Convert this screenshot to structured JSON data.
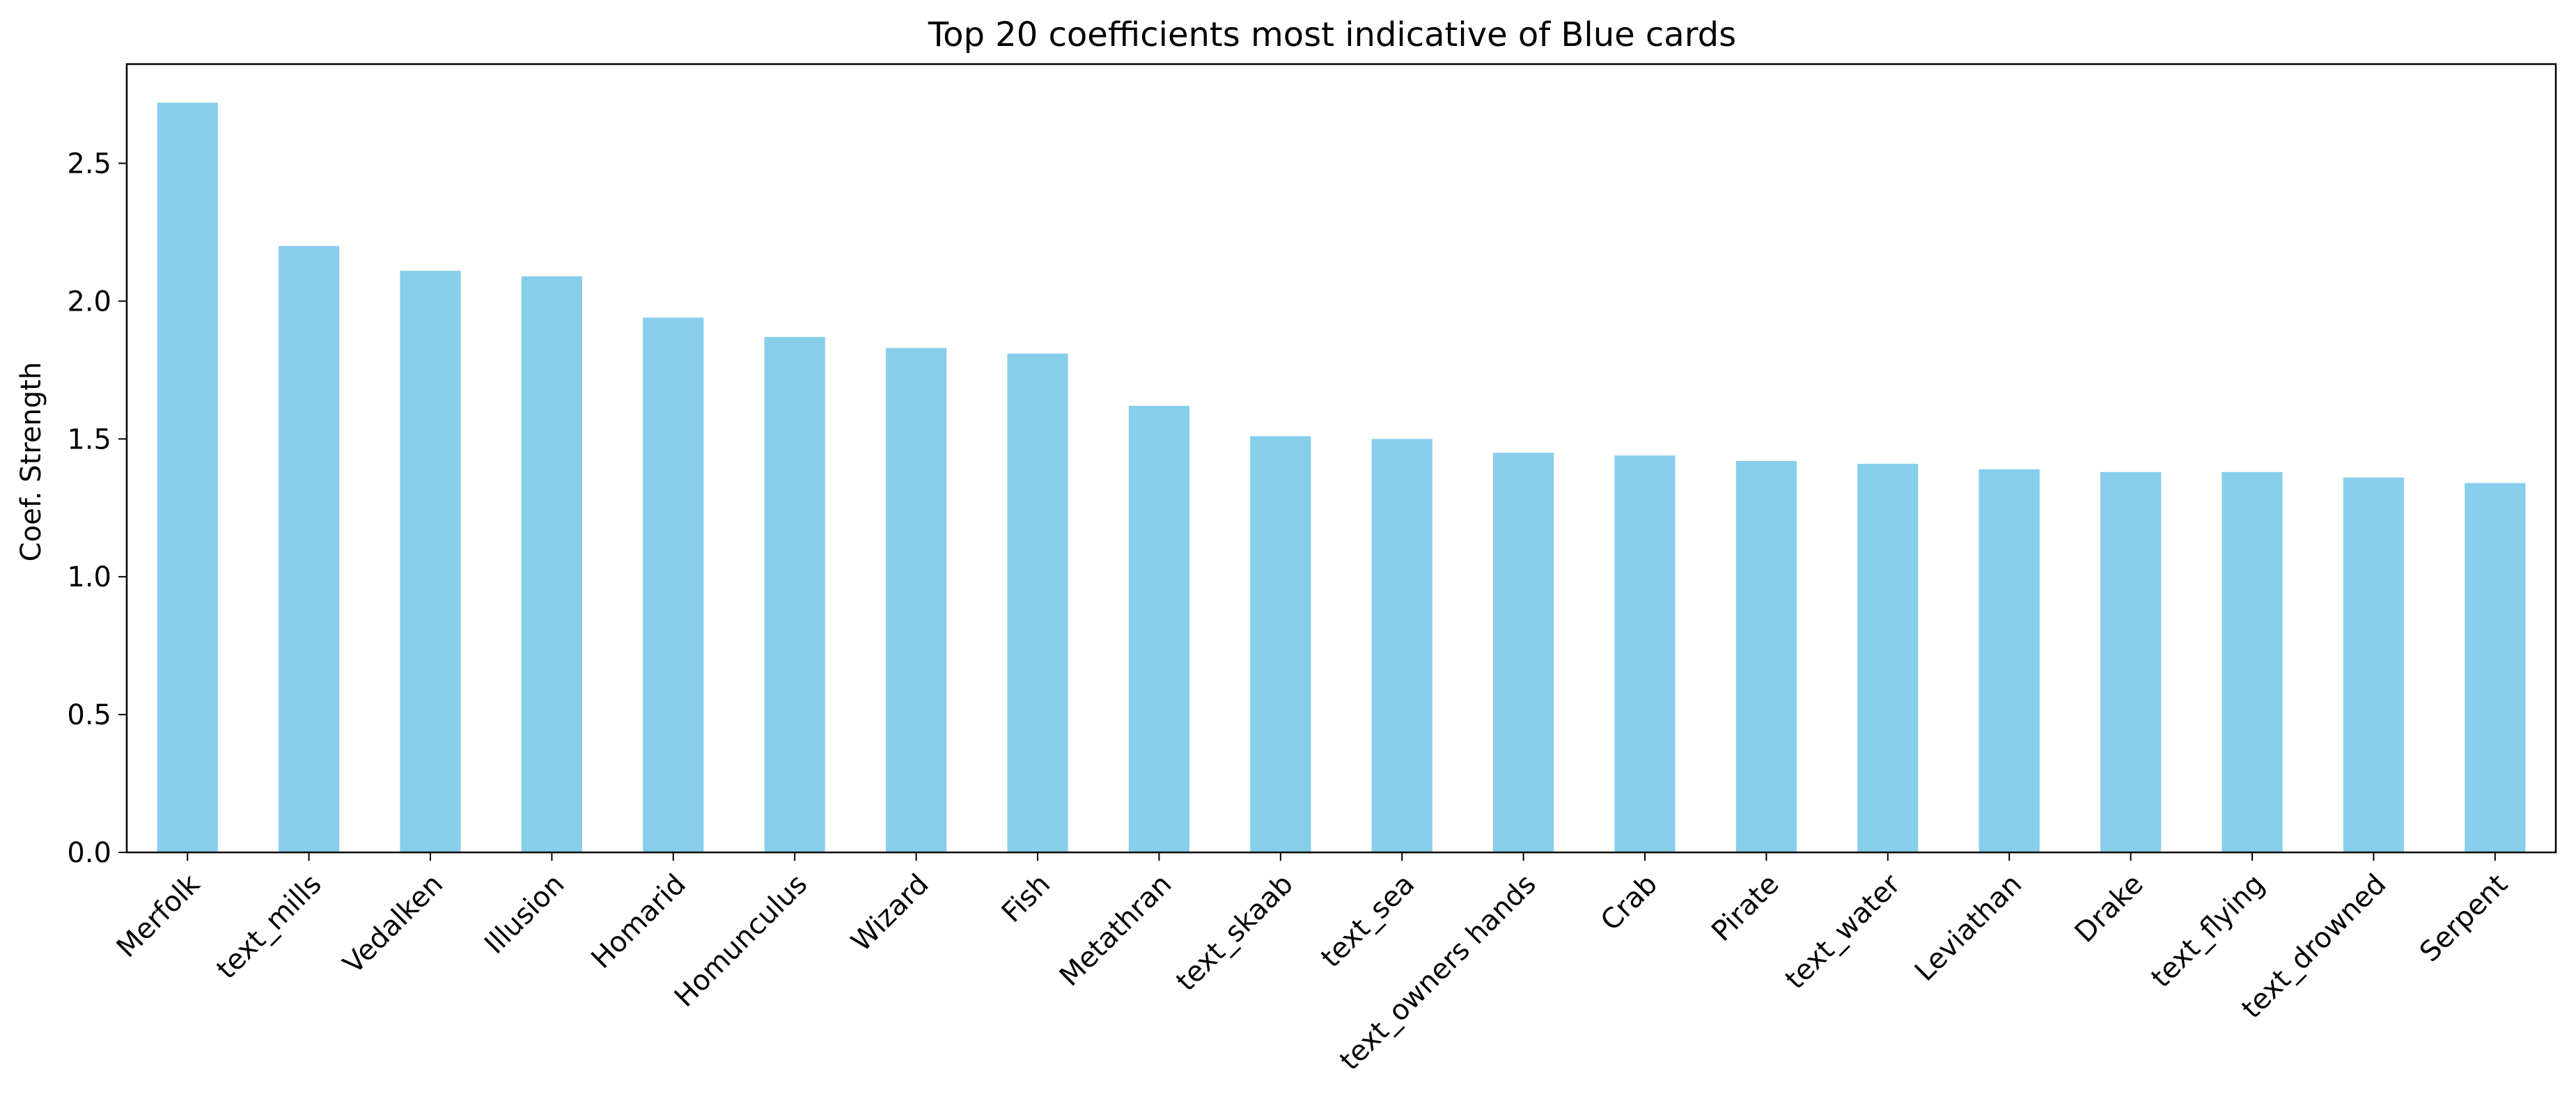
{
  "chart_data": {
    "type": "bar",
    "title": "Top 20 coefficients most indicative of Blue cards",
    "xlabel": "",
    "ylabel": "Coef. Strength",
    "categories": [
      "Merfolk",
      "text_mills",
      "Vedalken",
      "Illusion",
      "Homarid",
      "Homunculus",
      "Wizard",
      "Fish",
      "Metathran",
      "text_skaab",
      "text_sea",
      "text_owners hands",
      "Crab",
      "Pirate",
      "text_water",
      "Leviathan",
      "Drake",
      "text_flying",
      "text_drowned",
      "Serpent"
    ],
    "values": [
      2.72,
      2.2,
      2.11,
      2.09,
      1.94,
      1.87,
      1.83,
      1.81,
      1.62,
      1.51,
      1.5,
      1.45,
      1.44,
      1.42,
      1.41,
      1.39,
      1.38,
      1.38,
      1.36,
      1.34
    ],
    "ylim": [
      0,
      2.86
    ],
    "yticks": [
      "0.0",
      "0.5",
      "1.0",
      "1.5",
      "2.0",
      "2.5"
    ],
    "bar_color": "#87ceeb",
    "grid": false,
    "legend": "none"
  }
}
